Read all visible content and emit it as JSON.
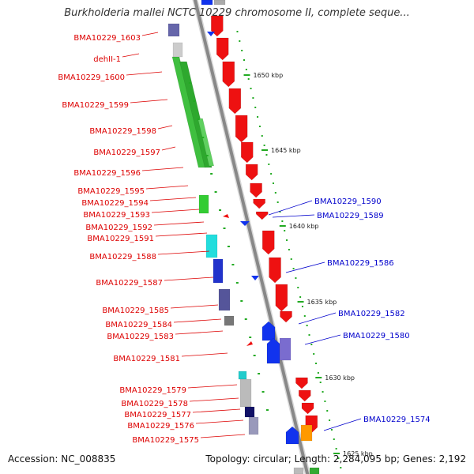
{
  "title": "Burkholderia mallei NCTC 10229 chromosome II, complete seque...",
  "footer": {
    "accession": "Accession: NC_008835",
    "summary": "Topology: circular; Length: 2,284,095 bp; Genes: 2,192"
  },
  "colors": {
    "backbone": "#888888",
    "left_label": "#dd0000",
    "right_label": "#0000cc",
    "forward_gene": "#ee1111",
    "reverse_gene": "#1133ee",
    "ruler_tick": "#22aa22"
  },
  "scale": {
    "unit": "kbp",
    "ticks": [
      {
        "label": "1650 kbp"
      },
      {
        "label": "1645 kbp"
      },
      {
        "label": "1640 kbp"
      },
      {
        "label": "1635 kbp"
      },
      {
        "label": "1630 kbp"
      },
      {
        "label": "1625 kbp"
      }
    ]
  },
  "left_labels": [
    "BMA10229_1603",
    "dehII-1",
    "BMA10229_1600",
    "BMA10229_1599",
    "BMA10229_1598",
    "BMA10229_1597",
    "BMA10229_1596",
    "BMA10229_1595",
    "BMA10229_1594",
    "BMA10229_1593",
    "BMA10229_1592",
    "BMA10229_1591",
    "BMA10229_1588",
    "BMA10229_1587",
    "BMA10229_1585",
    "BMA10229_1584",
    "BMA10229_1583",
    "BMA10229_1581",
    "BMA10229_1579",
    "BMA10229_1578",
    "BMA10229_1577",
    "BMA10229_1576",
    "BMA10229_1575"
  ],
  "right_labels": [
    "BMA10229_1590",
    "BMA10229_1589",
    "BMA10229_1586",
    "BMA10229_1582",
    "BMA10229_1580",
    "BMA10229_1574"
  ]
}
